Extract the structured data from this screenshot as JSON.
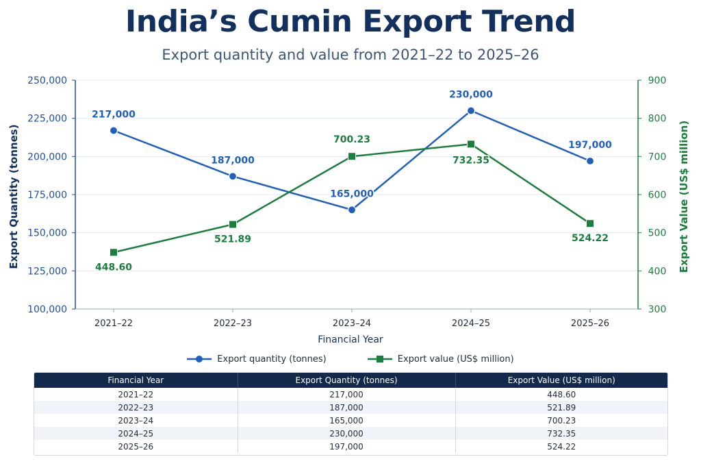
{
  "title": "India’s Cumin Export Trend",
  "subtitle": "Export quantity and value from 2021–22 to 2025–26",
  "chart_data": {
    "type": "line",
    "x": [
      "2021–22",
      "2022–23",
      "2023–24",
      "2024–25",
      "2025–26"
    ],
    "xlabel": "Financial Year",
    "y_left": {
      "label": "Export Quantity (tonnes)",
      "range": [
        100000,
        250000
      ],
      "ticks": [
        100000,
        125000,
        150000,
        175000,
        200000,
        225000,
        250000
      ],
      "tick_labels": [
        "100,000",
        "125,000",
        "150,000",
        "175,000",
        "200,000",
        "225,000",
        "250,000"
      ]
    },
    "y_right": {
      "label": "Export Value (US$ million)",
      "range": [
        300,
        900
      ],
      "ticks": [
        300,
        400,
        500,
        600,
        700,
        800,
        900
      ],
      "tick_labels": [
        "300",
        "400",
        "500",
        "600",
        "700",
        "800",
        "900"
      ]
    },
    "series": [
      {
        "name": "Export quantity (tonnes)",
        "axis": "left",
        "marker": "circle",
        "color": "#1f5fbf",
        "values": [
          217000,
          187000,
          165000,
          230000,
          197000
        ],
        "labels": [
          "217,000",
          "187,000",
          "165,000",
          "230,000",
          "197,000"
        ]
      },
      {
        "name": "Export value (US$ million)",
        "axis": "right",
        "marker": "square",
        "color": "#1a7f3c",
        "values": [
          448.6,
          521.89,
          700.23,
          732.35,
          524.22
        ],
        "labels": [
          "448.60",
          "521.89",
          "700.23",
          "732.35",
          "524.22"
        ]
      }
    ],
    "grid": true,
    "legend_position": "bottom"
  },
  "table": {
    "headers": [
      "Financial Year",
      "Export Quantity (tonnes)",
      "Export Value (US$ million)"
    ],
    "rows": [
      [
        "2021–22",
        "217,000",
        "448.60"
      ],
      [
        "2022–23",
        "187,000",
        "521.89"
      ],
      [
        "2023–24",
        "165,000",
        "700.23"
      ],
      [
        "2024–25",
        "230,000",
        "732.35"
      ],
      [
        "2025–26",
        "197,000",
        "524.22"
      ]
    ]
  }
}
